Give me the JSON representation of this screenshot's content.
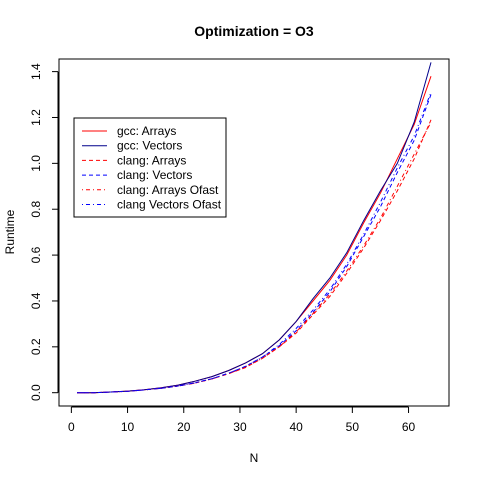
{
  "chart_data": {
    "type": "line",
    "title": "Optimization = O3",
    "xlabel": "N",
    "ylabel": "Runtime",
    "xlim": [
      -2.2,
      67.2
    ],
    "ylim": [
      -0.058,
      1.455
    ],
    "xticks": [
      0,
      10,
      20,
      30,
      40,
      50,
      60
    ],
    "yticks": [
      0.0,
      0.2,
      0.4,
      0.6,
      0.8,
      1.0,
      1.2,
      1.4
    ],
    "x": [
      1,
      4,
      7,
      10,
      13,
      16,
      19,
      22,
      25,
      28,
      31,
      34,
      37,
      40,
      43,
      46,
      49,
      52,
      55,
      58,
      61,
      64
    ],
    "series": [
      {
        "name": "gcc: Arrays",
        "color": "#ff0000",
        "dash": "solid",
        "values": [
          0.0,
          0.0,
          0.003,
          0.007,
          0.013,
          0.022,
          0.033,
          0.05,
          0.07,
          0.097,
          0.13,
          0.17,
          0.23,
          0.31,
          0.4,
          0.49,
          0.6,
          0.74,
          0.87,
          1.02,
          1.17,
          1.38
        ]
      },
      {
        "name": "gcc: Vectors",
        "color": "#00008b",
        "dash": "solid",
        "values": [
          0.0,
          0.0,
          0.003,
          0.007,
          0.013,
          0.022,
          0.033,
          0.05,
          0.07,
          0.097,
          0.13,
          0.17,
          0.23,
          0.31,
          0.41,
          0.5,
          0.61,
          0.75,
          0.88,
          1.0,
          1.18,
          1.44
        ]
      },
      {
        "name": "clang: Arrays",
        "color": "#ff0000",
        "dash": "dashed",
        "values": [
          0.0,
          0.0,
          0.003,
          0.006,
          0.012,
          0.019,
          0.029,
          0.042,
          0.06,
          0.083,
          0.11,
          0.15,
          0.2,
          0.26,
          0.34,
          0.42,
          0.52,
          0.63,
          0.75,
          0.88,
          1.02,
          1.19
        ]
      },
      {
        "name": "clang: Vectors",
        "color": "#0000ff",
        "dash": "dashed",
        "values": [
          0.0,
          0.0,
          0.003,
          0.006,
          0.012,
          0.019,
          0.029,
          0.043,
          0.061,
          0.085,
          0.115,
          0.155,
          0.205,
          0.27,
          0.35,
          0.44,
          0.55,
          0.68,
          0.81,
          0.96,
          1.1,
          1.3
        ]
      },
      {
        "name": "clang: Arrays Ofast",
        "color": "#ff0000",
        "dash": "dotdash",
        "values": [
          0.0,
          0.0,
          0.003,
          0.006,
          0.012,
          0.019,
          0.029,
          0.042,
          0.06,
          0.083,
          0.112,
          0.15,
          0.2,
          0.265,
          0.345,
          0.43,
          0.53,
          0.64,
          0.76,
          0.9,
          1.04,
          1.18
        ]
      },
      {
        "name": "clang Vectors Ofast",
        "color": "#0000ff",
        "dash": "dotdash",
        "values": [
          0.0,
          0.0,
          0.003,
          0.006,
          0.012,
          0.019,
          0.029,
          0.043,
          0.061,
          0.085,
          0.115,
          0.155,
          0.21,
          0.28,
          0.36,
          0.45,
          0.56,
          0.69,
          0.83,
          0.98,
          1.12,
          1.31
        ]
      }
    ],
    "grid": false,
    "legend_position": "top-left"
  }
}
